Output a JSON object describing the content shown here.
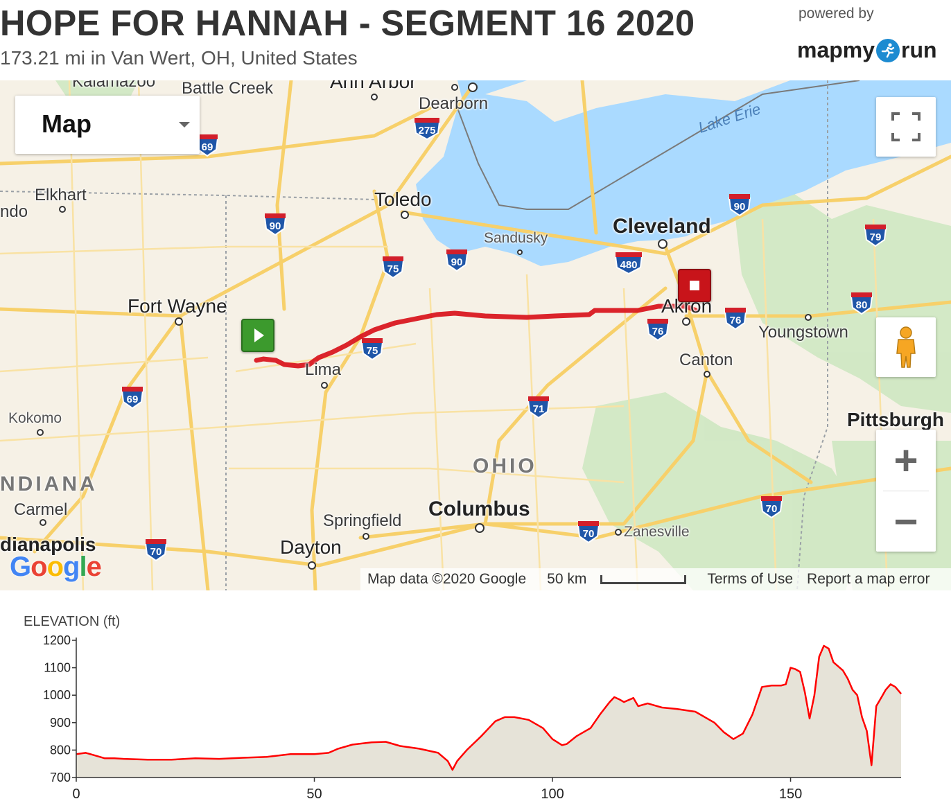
{
  "header": {
    "title": "HOPE FOR HANNAH - SEGMENT 16 2020",
    "subtitle": "173.21 mi in Van Wert, OH, United States",
    "powered_by": "powered by",
    "brand_left": "mapmy",
    "brand_right": "run"
  },
  "map": {
    "type_selector": "Map",
    "labels": {
      "kalamazoo": "Kalamazoo",
      "battle_creek": "Battle Creek",
      "ann_arbor": "Ann Arbor",
      "dearborn": "Dearborn",
      "lake_erie": "Lake Erie",
      "elkhart": "Elkhart",
      "ndo": "ndo",
      "toledo": "Toledo",
      "cleveland": "Cleveland",
      "sandusky": "Sandusky",
      "fort_wayne": "Fort Wayne",
      "akron": "Akron",
      "youngstown": "Youngstown",
      "lima": "Lima",
      "canton": "Canton",
      "kokomo": "Kokomo",
      "pittsburgh": "Pittsburgh",
      "ohio": "OHIO",
      "indiana": "NDIANA",
      "carmel": "Carmel",
      "springfield": "Springfield",
      "columbus": "Columbus",
      "zanesville": "Zanesville",
      "indianapolis": "dianapolis",
      "dayton": "Dayton"
    },
    "shields": {
      "s275": "275",
      "s69a": "69",
      "s90a": "90",
      "s75a": "75",
      "s90b": "90",
      "s480": "480",
      "s90c": "90",
      "s79": "79",
      "s80": "80",
      "s76a": "76",
      "s76b": "76",
      "s75b": "75",
      "s69b": "69",
      "s71": "71",
      "s70a": "70",
      "s70b": "70",
      "s70c": "70"
    },
    "google_logo": "Google",
    "attribution": {
      "data": "Map data ©2020 Google",
      "scale": "50 km",
      "terms": "Terms of Use",
      "report": "Report a map error"
    },
    "colors": {
      "route": "#d8121b",
      "water": "#aadaff",
      "road": "#f8d26b",
      "start": "#3c9a2d",
      "end": "#c8141a"
    },
    "icons": {
      "start": "play-icon",
      "end": "stop-icon",
      "fullscreen": "fullscreen-icon",
      "pegman": "pegman-icon"
    },
    "zoom_in": "+",
    "zoom_out": "−"
  },
  "elevation": {
    "title": "ELEVATION (ft)",
    "chart_data": {
      "type": "area",
      "title": "ELEVATION (ft)",
      "xlabel": "",
      "ylabel": "",
      "xlim": [
        0,
        173.21
      ],
      "ylim": [
        700,
        1200
      ],
      "yticks": [
        700,
        800,
        900,
        1000,
        1100,
        1200
      ],
      "xticks": [
        0,
        50,
        100,
        150
      ],
      "grid": false,
      "series": [
        {
          "color": "#ff0000",
          "fill": "#e6e3d8",
          "x": [
            0,
            2,
            4,
            6,
            8,
            10,
            15,
            20,
            25,
            30,
            35,
            40,
            45,
            50,
            53,
            55,
            58,
            62,
            65,
            68,
            72,
            76,
            78,
            79,
            80,
            82,
            85,
            88,
            90,
            92,
            95,
            98,
            100,
            102,
            103,
            105,
            108,
            110,
            112,
            113,
            114,
            115,
            117,
            118,
            120,
            123,
            126,
            128,
            130,
            132,
            134,
            136,
            138,
            140,
            142,
            144,
            146,
            148,
            149,
            150,
            151,
            152,
            153,
            154,
            155,
            156,
            157,
            158,
            159,
            160,
            161,
            162,
            163,
            164,
            165,
            166,
            167,
            168,
            169,
            170,
            171,
            172,
            173.21
          ],
          "y": [
            785,
            790,
            780,
            770,
            770,
            768,
            765,
            765,
            770,
            768,
            772,
            775,
            785,
            785,
            790,
            805,
            820,
            828,
            830,
            815,
            805,
            790,
            760,
            728,
            760,
            800,
            850,
            905,
            920,
            920,
            910,
            880,
            840,
            818,
            822,
            850,
            880,
            930,
            975,
            993,
            985,
            975,
            990,
            960,
            970,
            955,
            950,
            945,
            940,
            920,
            900,
            865,
            840,
            860,
            930,
            1030,
            1035,
            1035,
            1040,
            1100,
            1095,
            1085,
            1010,
            915,
            1000,
            1140,
            1180,
            1170,
            1120,
            1105,
            1090,
            1060,
            1020,
            1000,
            920,
            870,
            745,
            960,
            990,
            1020,
            1040,
            1030,
            1005
          ]
        }
      ]
    }
  }
}
